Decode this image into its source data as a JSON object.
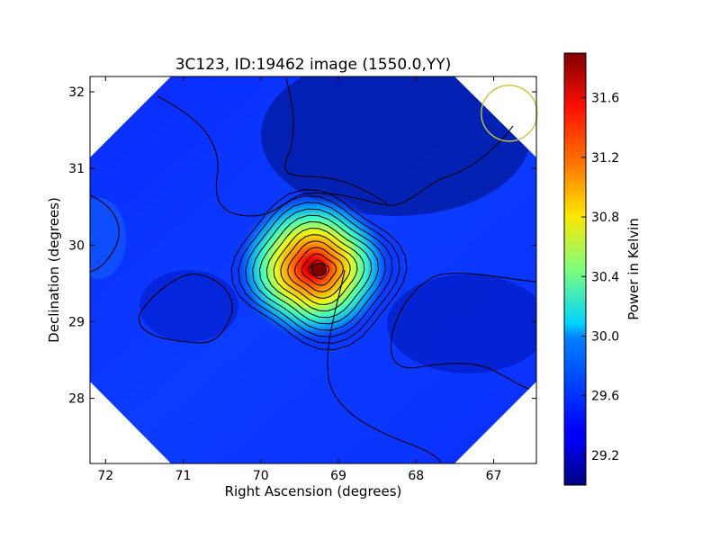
{
  "chart_data": {
    "type": "heatmap",
    "title": "3C123, ID:19462 image (1550.0,YY)",
    "xlabel": "Right Ascension (degrees)",
    "ylabel": "Declination (degrees)",
    "colorbar_label": "Power in Kelvin",
    "xlim": [
      72.2,
      66.45
    ],
    "ylim": [
      27.15,
      32.2
    ],
    "x_ticks": [
      72,
      71,
      70,
      69,
      68,
      67
    ],
    "y_ticks": [
      28,
      29,
      30,
      31,
      32
    ],
    "colorbar_range": [
      29.0,
      31.9
    ],
    "colorbar_ticks": [
      29.2,
      29.6,
      30.0,
      30.4,
      30.8,
      31.2,
      31.6
    ],
    "colormap": "jet",
    "grid": false,
    "peak": {
      "ra": 69.25,
      "dec": 29.68,
      "value": 31.85
    },
    "background_level": 29.5,
    "contour_levels": 12,
    "beam_circle": {
      "ra": 66.8,
      "dec": 31.72,
      "color": "#c8c83c"
    }
  }
}
